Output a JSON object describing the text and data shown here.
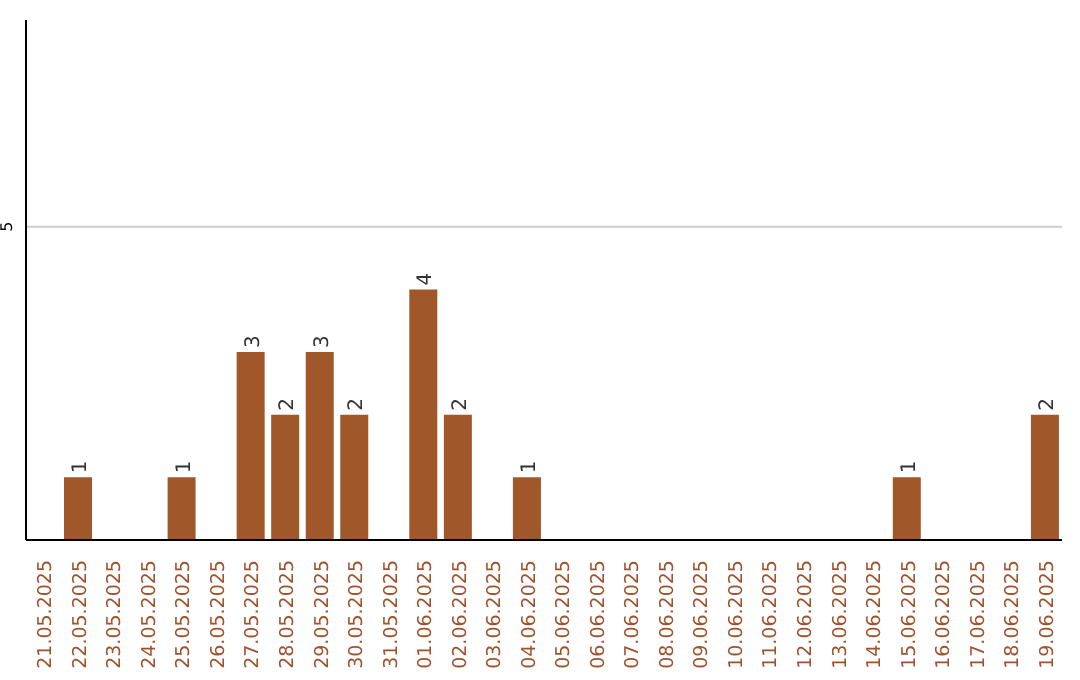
{
  "chart_data": {
    "type": "bar",
    "categories": [
      "21.05.2025",
      "22.05.2025",
      "23.05.2025",
      "24.05.2025",
      "25.05.2025",
      "26.05.2025",
      "27.05.2025",
      "28.05.2025",
      "29.05.2025",
      "30.05.2025",
      "31.05.2025",
      "01.06.2025",
      "02.06.2025",
      "03.06.2025",
      "04.06.2025",
      "05.06.2025",
      "06.06.2025",
      "07.06.2025",
      "08.06.2025",
      "09.06.2025",
      "10.06.2025",
      "11.06.2025",
      "12.06.2025",
      "13.06.2025",
      "14.06.2025",
      "15.06.2025",
      "16.06.2025",
      "17.06.2025",
      "18.06.2025",
      "19.06.2025"
    ],
    "values": [
      0,
      1,
      0,
      0,
      1,
      0,
      3,
      2,
      3,
      2,
      0,
      4,
      2,
      0,
      1,
      0,
      0,
      0,
      0,
      0,
      0,
      0,
      0,
      0,
      0,
      1,
      0,
      0,
      0,
      2
    ],
    "value_labels": [
      null,
      "1",
      null,
      null,
      "1",
      null,
      "3",
      "2",
      "3",
      "2",
      null,
      "4",
      "2",
      null,
      "1",
      null,
      null,
      null,
      null,
      null,
      null,
      null,
      null,
      null,
      null,
      "1",
      null,
      null,
      null,
      "2"
    ],
    "color": "#a0572a",
    "ylim": [
      0,
      8.3
    ],
    "yticks": [
      5
    ],
    "grid": "y"
  }
}
